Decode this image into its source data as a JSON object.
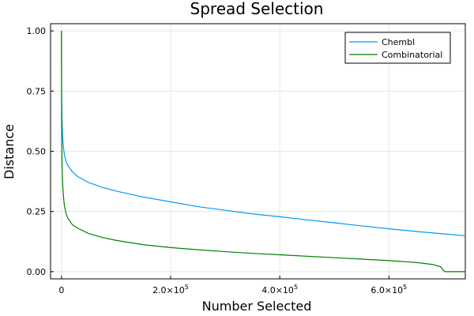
{
  "chart_data": {
    "type": "line",
    "title": "Spread Selection",
    "xlabel": "Number Selected",
    "ylabel": "Distance",
    "xlim": [
      -20000,
      740000
    ],
    "ylim": [
      -0.03,
      1.03
    ],
    "x_ticks": [
      {
        "value": 0,
        "label": "0",
        "mantissa": "",
        "exp": ""
      },
      {
        "value": 200000,
        "label": "",
        "mantissa": "2.0×10",
        "exp": "5"
      },
      {
        "value": 400000,
        "label": "",
        "mantissa": "4.0×10",
        "exp": "5"
      },
      {
        "value": 600000,
        "label": "",
        "mantissa": "6.0×10",
        "exp": "5"
      }
    ],
    "y_ticks": [
      {
        "value": 0,
        "label": "0.00"
      },
      {
        "value": 0.25,
        "label": "0.25"
      },
      {
        "value": 0.5,
        "label": "0.50"
      },
      {
        "value": 0.75,
        "label": "0.75"
      },
      {
        "value": 1.0,
        "label": "1.00"
      }
    ],
    "grid": true,
    "legend_position": "top-right",
    "series": [
      {
        "name": "Chembl",
        "color": "#009af9",
        "x": [
          0,
          300,
          1000,
          2000,
          3000,
          5000,
          8000,
          12000,
          20000,
          30000,
          50000,
          75000,
          100000,
          150000,
          200000,
          250000,
          300000,
          350000,
          400000,
          450000,
          500000,
          550000,
          600000,
          650000,
          700000,
          740000
        ],
        "y": [
          1.0,
          0.75,
          0.63,
          0.57,
          0.53,
          0.49,
          0.46,
          0.44,
          0.415,
          0.395,
          0.37,
          0.35,
          0.335,
          0.31,
          0.29,
          0.27,
          0.255,
          0.24,
          0.228,
          0.215,
          0.203,
          0.19,
          0.178,
          0.167,
          0.157,
          0.149
        ]
      },
      {
        "name": "Combinatorial",
        "color": "#008000",
        "x": [
          0,
          300,
          1000,
          2000,
          3000,
          5000,
          8000,
          12000,
          20000,
          30000,
          50000,
          75000,
          100000,
          150000,
          200000,
          250000,
          300000,
          350000,
          400000,
          450000,
          500000,
          550000,
          600000,
          650000,
          680000,
          695000,
          700000,
          703000,
          740000
        ],
        "y": [
          1.0,
          0.62,
          0.45,
          0.37,
          0.33,
          0.28,
          0.245,
          0.22,
          0.195,
          0.18,
          0.158,
          0.142,
          0.13,
          0.112,
          0.1,
          0.091,
          0.083,
          0.076,
          0.07,
          0.064,
          0.058,
          0.052,
          0.046,
          0.038,
          0.03,
          0.02,
          0.005,
          0.0,
          0.0
        ]
      }
    ]
  }
}
